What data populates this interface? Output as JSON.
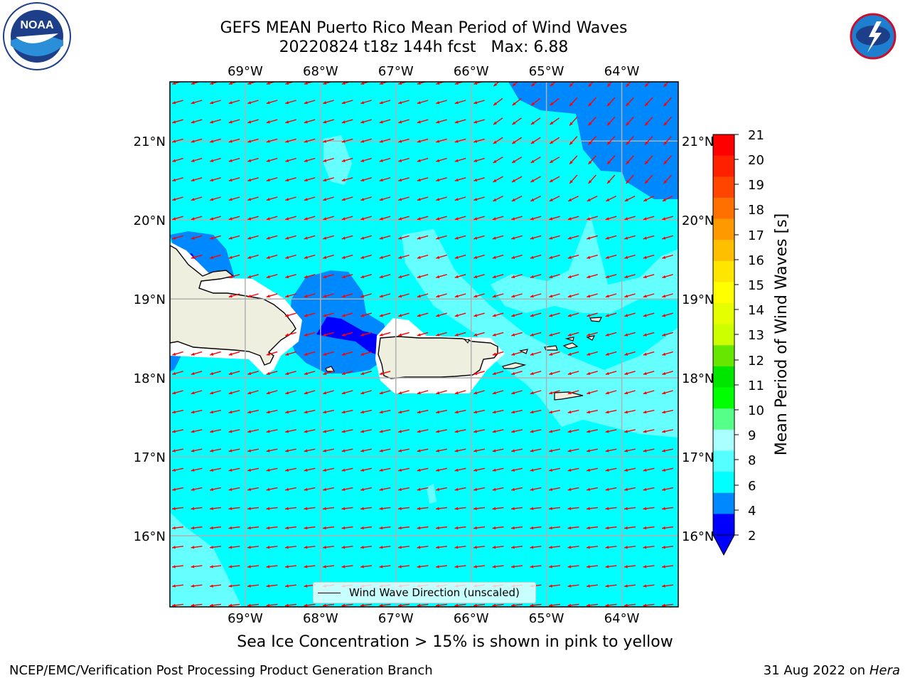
{
  "header": {
    "title_line1": "GEFS MEAN Puerto Rico Mean Period of Wind Waves",
    "title_line2_run": "20220824 t18z 144h fcst",
    "title_line2_max": "Max: 6.88"
  },
  "map": {
    "lon_labels": [
      "69°W",
      "68°W",
      "67°W",
      "66°W",
      "65°W",
      "64°W"
    ],
    "lat_labels": [
      "21°N",
      "20°N",
      "19°N",
      "18°N",
      "17°N",
      "16°N"
    ],
    "lon_range": [
      -70.0,
      -63.25
    ],
    "lat_range": [
      15.1,
      21.75
    ],
    "ocean_color": "#00ffff",
    "land_color": "#efefdf",
    "arrow_color": "#ff0000",
    "grid": true
  },
  "legend": {
    "label": "Wind Wave Direction (unscaled)"
  },
  "colorbar": {
    "title": "Mean Period of Wind Waves [s]",
    "ticks": [
      "21",
      "20",
      "19",
      "18",
      "17",
      "16",
      "15",
      "14",
      "13",
      "12",
      "11",
      "10",
      "9",
      "8",
      "6",
      "4",
      "2"
    ],
    "colors": [
      "#ff0000",
      "#ff2000",
      "#ff4500",
      "#ff7000",
      "#ff9900",
      "#ffbf00",
      "#ffe600",
      "#ffff00",
      "#e6ff00",
      "#ccff00",
      "#66e600",
      "#00e600",
      "#00ff00",
      "#55ff88",
      "#aaffff",
      "#55ffff",
      "#00ffff",
      "#0088ff",
      "#0000ff"
    ],
    "underflow_color": "#0000ff"
  },
  "chart_data": {
    "type": "heatmap",
    "title": "GEFS MEAN Puerto Rico Mean Period of Wind Waves",
    "subtitle": "20220824 t18z 144h fcst   Max: 6.88",
    "colorbar_label": "Mean Period of Wind Waves [s]",
    "colorbar_levels": [
      2,
      4,
      6,
      8,
      9,
      10,
      11,
      12,
      13,
      14,
      15,
      16,
      17,
      18,
      19,
      20,
      21
    ],
    "max_value": 6.88,
    "xlim": [
      -70.0,
      -63.25
    ],
    "ylim": [
      15.1,
      21.75
    ],
    "legend": "Wind Wave Direction (unscaled)",
    "vector_direction": "toward west-southwest"
  },
  "footer": {
    "subtitle": "Sea Ice Concentration > 15% is shown in pink to yellow",
    "left": "NCEP/EMC/Verification Post Processing Product Generation Branch",
    "right_date": "31 Aug 2022 on",
    "right_machine": "Hera"
  },
  "logos": {
    "left": "NOAA",
    "right": "NATIONAL WEATHER SERVICE"
  }
}
